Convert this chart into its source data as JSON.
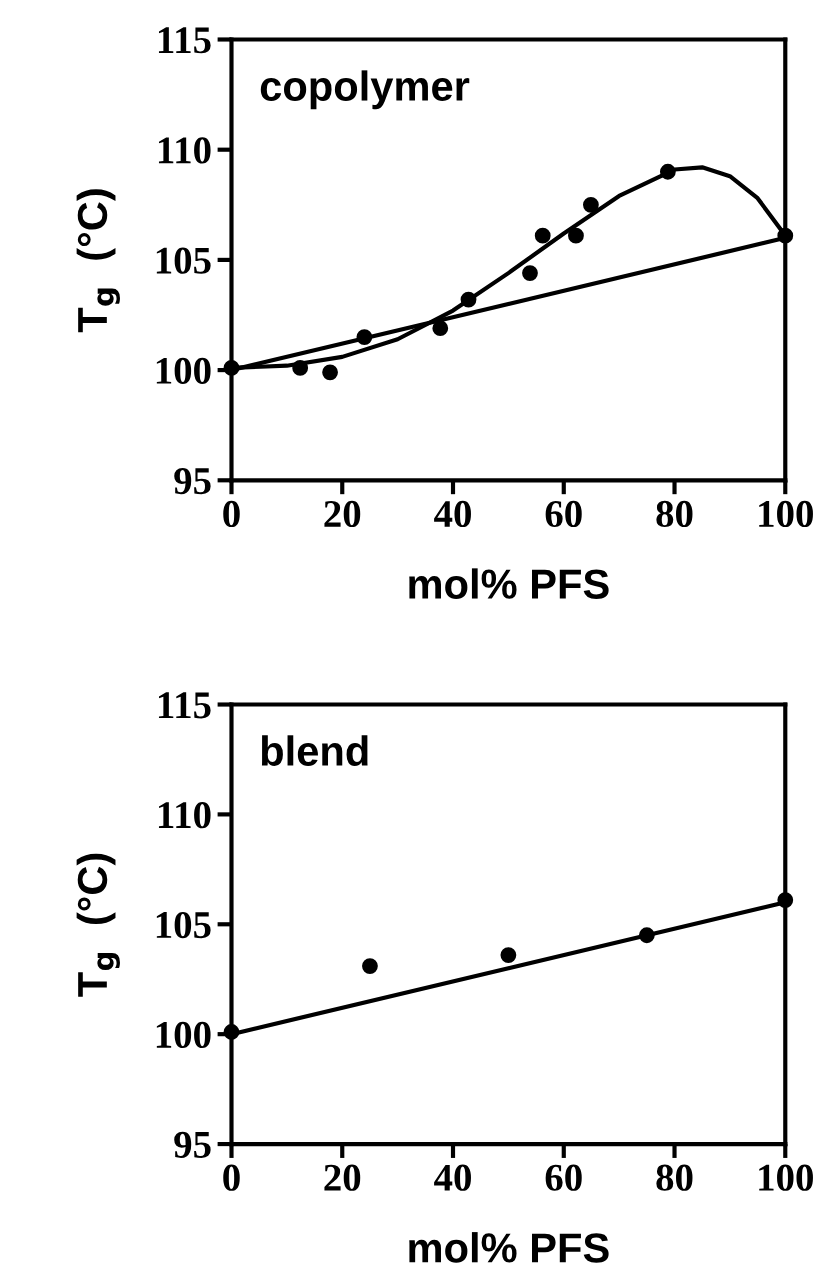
{
  "chart_data": [
    {
      "type": "scatter",
      "xlabel": "mol% PFS",
      "ylabel": "T$_{g}$  (°C)",
      "annotations": [
        "copolymer"
      ],
      "xlim": [
        0,
        100
      ],
      "ylim": [
        95,
        115
      ],
      "xticks": [
        0,
        20,
        40,
        60,
        80,
        100
      ],
      "yticks": [
        95,
        100,
        105,
        110,
        115
      ],
      "grid": false,
      "legend": false,
      "series": [
        {
          "color": "#000000",
          "marker": "circle",
          "x": [
            0,
            12.4,
            17.8,
            24,
            37.7,
            42.8,
            53.9,
            56.2,
            62.2,
            64.9,
            78.8,
            100
          ],
          "values": [
            100.1,
            100.1,
            99.9,
            101.5,
            101.9,
            103.2,
            104.4,
            106.1,
            106.1,
            107.5,
            109.0,
            106.1
          ]
        },
        {
          "type": "line",
          "color": "#000000",
          "marker": "none",
          "line_style": "solid",
          "x": [
            0,
            10,
            20,
            30,
            40,
            50,
            60,
            70,
            80,
            85,
            90,
            95,
            100
          ],
          "values": [
            100.1,
            100.2,
            100.6,
            101.4,
            102.7,
            104.4,
            106.2,
            107.9,
            109.1,
            109.2,
            108.8,
            107.8,
            106.1
          ]
        },
        {
          "type": "line",
          "color": "#000000",
          "marker": "none",
          "line_style": "solid",
          "x": [
            0,
            100
          ],
          "values": [
            100,
            106
          ]
        }
      ]
    },
    {
      "type": "scatter",
      "xlabel": "mol% PFS",
      "ylabel": "T$_{g}$  (°C)",
      "annotations": [
        "blend"
      ],
      "xlim": [
        0,
        100
      ],
      "ylim": [
        95,
        115
      ],
      "xticks": [
        0,
        20,
        40,
        60,
        80,
        100
      ],
      "yticks": [
        95,
        100,
        105,
        110,
        115
      ],
      "grid": false,
      "legend": false,
      "series": [
        {
          "color": "#000000",
          "marker": "circle",
          "x": [
            0,
            25,
            50,
            75,
            100
          ],
          "values": [
            100.1,
            103.1,
            103.6,
            104.5,
            106.1
          ]
        },
        {
          "type": "line",
          "color": "#000000",
          "marker": "none",
          "line_style": "solid",
          "x": [
            0,
            100
          ],
          "values": [
            100,
            106
          ]
        }
      ]
    }
  ]
}
